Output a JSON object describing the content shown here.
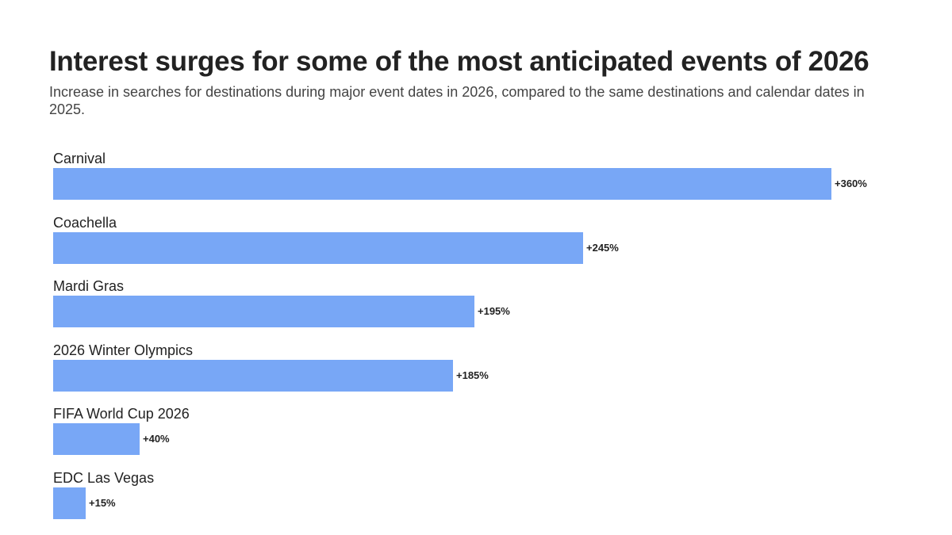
{
  "chart_data": {
    "type": "bar",
    "orientation": "horizontal",
    "title": "Interest surges for some of the most anticipated events of 2026",
    "subtitle": "Increase in searches for destinations during major event dates in 2026, compared to the same destinations and calendar dates in 2025.",
    "categories": [
      "Carnival",
      "Coachella",
      "Mardi Gras",
      "2026 Winter Olympics",
      "FIFA World Cup 2026",
      "EDC Las Vegas"
    ],
    "values": [
      360,
      245,
      195,
      185,
      40,
      15
    ],
    "value_labels": [
      "+360%",
      "+245%",
      "+195%",
      "+185%",
      "+40%",
      "+15%"
    ],
    "xlim": [
      0,
      360
    ],
    "bar_color": "#78a7f6",
    "grid": false,
    "legend": "none"
  }
}
